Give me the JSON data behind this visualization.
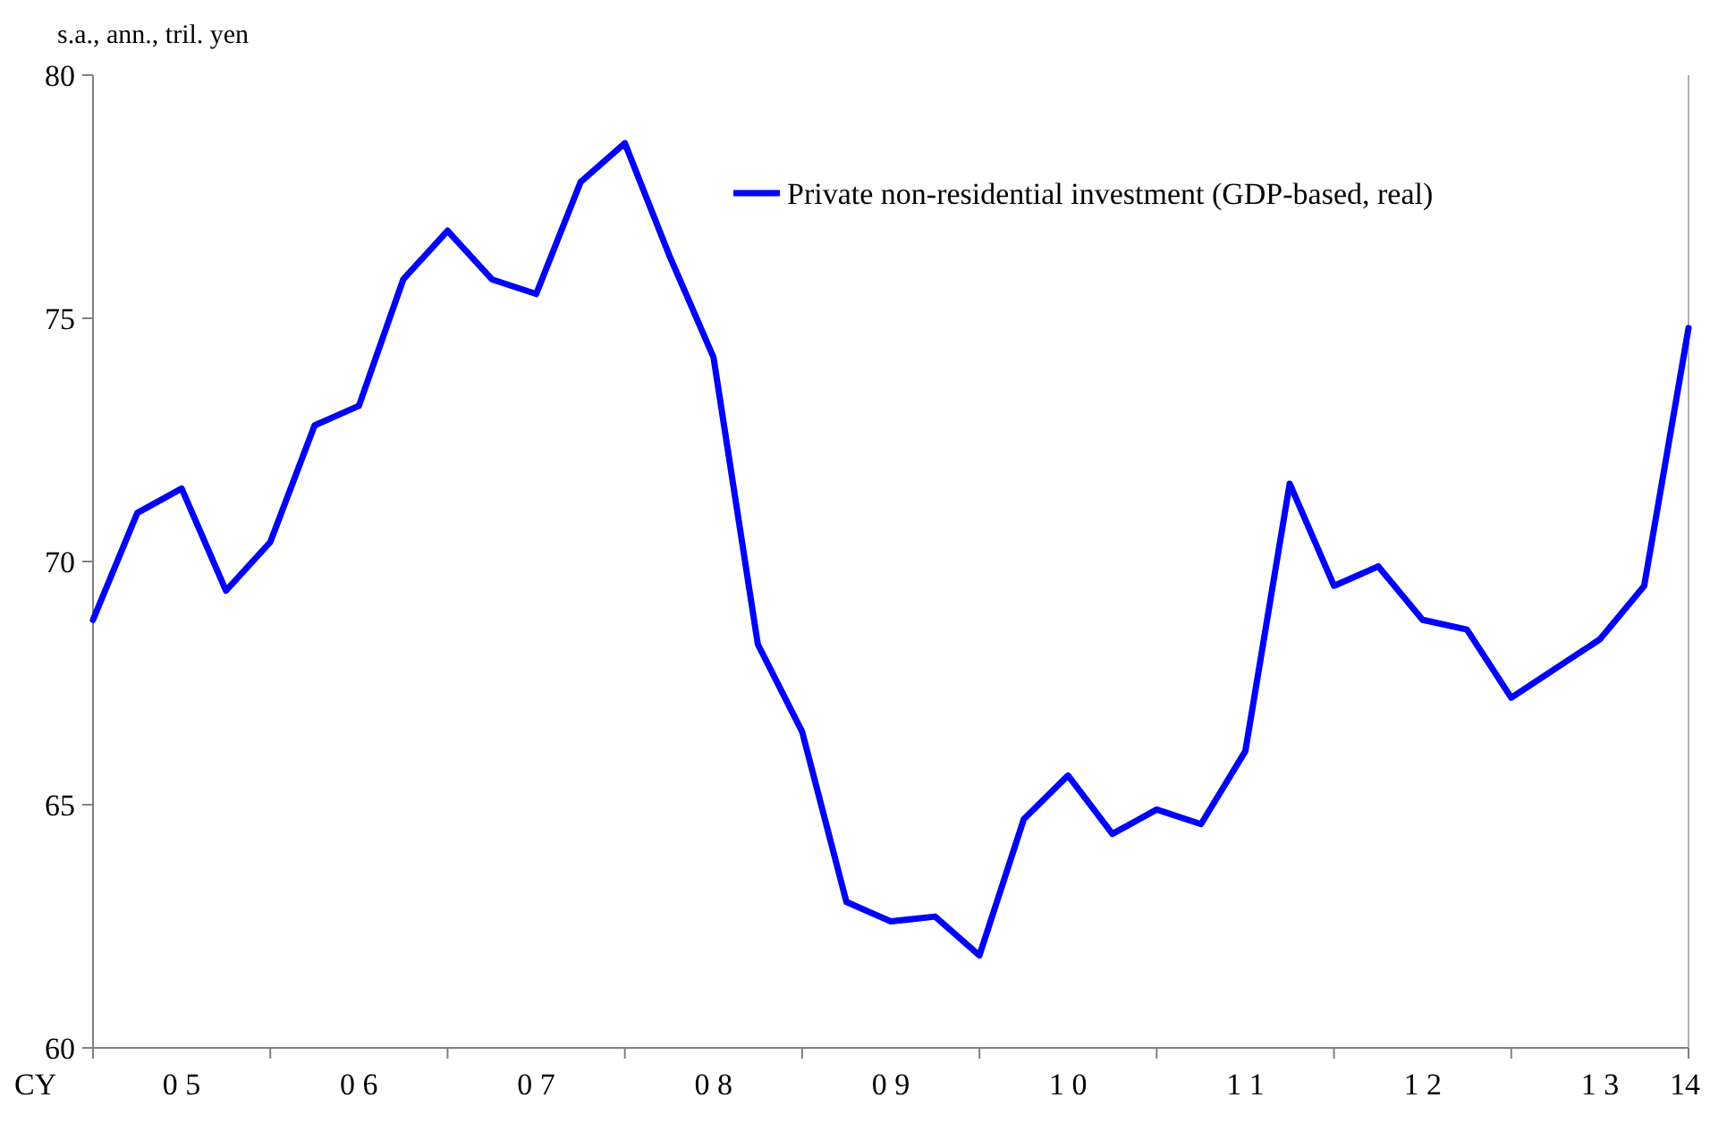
{
  "chart_data": {
    "type": "line",
    "ylabel": "s.a., ann., tril. yen",
    "xlabel": "CY",
    "categories": [
      null,
      null,
      "0 5",
      null,
      null,
      null,
      "0 6",
      null,
      null,
      null,
      "0 7",
      null,
      null,
      null,
      "0 8",
      null,
      null,
      null,
      "0 9",
      null,
      null,
      null,
      "1 0",
      null,
      null,
      null,
      "1 1",
      null,
      null,
      null,
      "1 2",
      null,
      null,
      null,
      "1 3",
      null,
      "14"
    ],
    "series": [
      {
        "name": "Private non-residential investment (GDP-based, real)",
        "color": "#0000ff",
        "values": [
          68.8,
          71.0,
          71.5,
          69.4,
          70.4,
          72.8,
          73.2,
          75.8,
          76.8,
          75.8,
          75.5,
          77.8,
          78.6,
          76.3,
          74.2,
          68.3,
          66.5,
          63.0,
          62.6,
          62.7,
          61.9,
          64.7,
          65.6,
          64.4,
          64.9,
          64.6,
          66.1,
          71.6,
          69.5,
          69.9,
          68.8,
          68.6,
          67.2,
          67.8,
          68.4,
          69.5,
          74.8
        ]
      }
    ],
    "ylim": [
      60,
      80
    ],
    "yticks": [
      60,
      65,
      70,
      75,
      80
    ],
    "grid": false,
    "legend": "top right",
    "marker": "none",
    "line_style": "solid"
  }
}
